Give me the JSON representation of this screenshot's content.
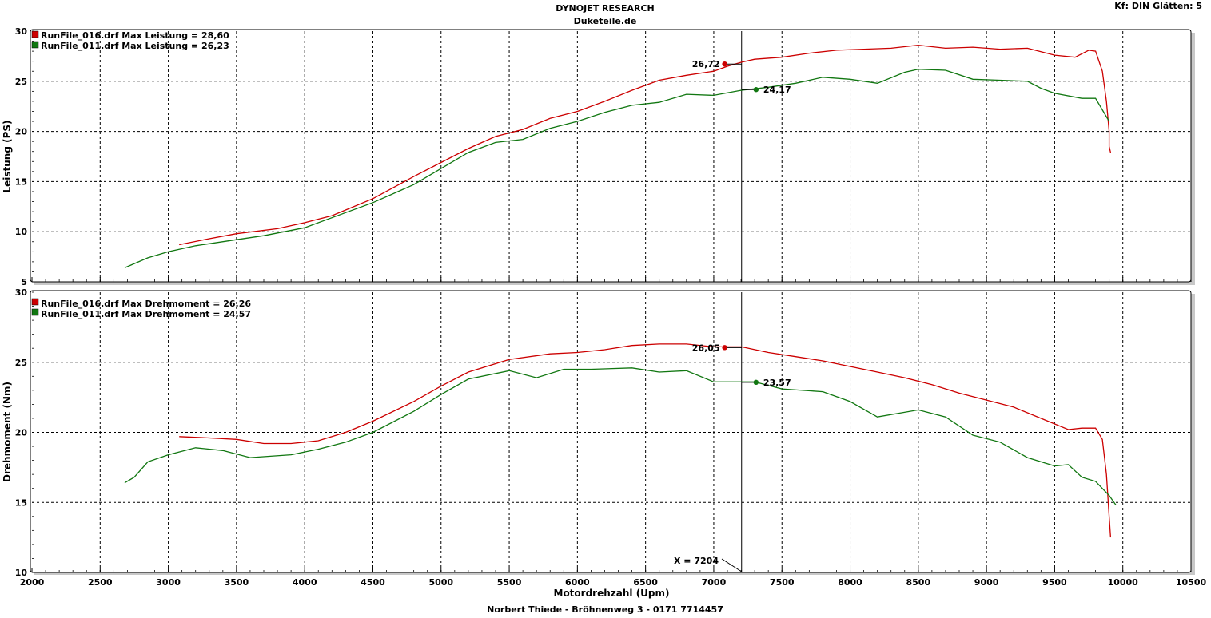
{
  "header": {
    "title": "DYNOJET RESEARCH",
    "subtitle": "Duketeile.de",
    "settings": "Kf: DIN  Glätten: 5"
  },
  "footer": {
    "text": "Norbert Thiede - Bröhnenweg 3 - 0171 7714457"
  },
  "colors": {
    "series_red": "#cc0000",
    "series_green": "#117711",
    "grid": "#000000",
    "panel_shadow": "#c0c0c0"
  },
  "cursor": {
    "rpm": 7204,
    "label": "X = 7204"
  },
  "chart_data": [
    {
      "type": "line",
      "ylabel": "Leistung (PS)",
      "xlabel": "Motordrehzahl (Upm)",
      "xlim": [
        2000,
        10500
      ],
      "ylim": [
        5,
        30
      ],
      "xticks": [
        "2000",
        "2500",
        "3000",
        "3500",
        "4000",
        "4500",
        "5000",
        "5500",
        "6000",
        "6500",
        "7000",
        "7500",
        "8000",
        "8500",
        "9000",
        "9500",
        "10000",
        "10500"
      ],
      "yticks": [
        "5",
        "10",
        "15",
        "20",
        "25",
        "30"
      ],
      "grid": true,
      "legend_position": "top-left",
      "series": [
        {
          "name": "RunFile_016.drf",
          "legend": "RunFile_016.drf Max Leistung = 28,60",
          "color": "#cc0000",
          "marker": {
            "x": 7080,
            "y": 26.72,
            "label": "26,72"
          },
          "x": [
            3080,
            3300,
            3500,
            3800,
            4000,
            4200,
            4500,
            4800,
            5000,
            5200,
            5400,
            5600,
            5800,
            6000,
            6200,
            6400,
            6600,
            6800,
            7000,
            7100,
            7204,
            7300,
            7500,
            7700,
            7900,
            8100,
            8300,
            8500,
            8700,
            8900,
            9100,
            9300,
            9500,
            9650,
            9750,
            9800,
            9850,
            9880,
            9900,
            9900,
            9910
          ],
          "values": [
            8.7,
            9.3,
            9.8,
            10.3,
            10.9,
            11.6,
            13.3,
            15.5,
            16.9,
            18.3,
            19.5,
            20.2,
            21.3,
            22.0,
            23.0,
            24.1,
            25.1,
            25.6,
            26.0,
            26.5,
            26.9,
            27.2,
            27.4,
            27.8,
            28.1,
            28.2,
            28.3,
            28.6,
            28.3,
            28.4,
            28.2,
            28.3,
            27.6,
            27.4,
            28.1,
            28.0,
            26.0,
            23.0,
            20.0,
            18.5,
            17.9
          ]
        },
        {
          "name": "RunFile_011.drf",
          "legend": "RunFile_011.drf Max Leistung = 26,23",
          "color": "#117711",
          "marker": {
            "x": 7310,
            "y": 24.17,
            "label": "24,17"
          },
          "x": [
            2680,
            2850,
            3000,
            3200,
            3500,
            3700,
            4000,
            4300,
            4500,
            4800,
            5000,
            5200,
            5400,
            5600,
            5800,
            6000,
            6200,
            6400,
            6600,
            6800,
            7000,
            7200,
            7400,
            7600,
            7800,
            8000,
            8200,
            8400,
            8500,
            8700,
            8900,
            9100,
            9300,
            9400,
            9500,
            9700,
            9800,
            9900
          ],
          "values": [
            6.4,
            7.4,
            8.0,
            8.6,
            9.2,
            9.6,
            10.4,
            11.9,
            12.9,
            14.7,
            16.3,
            17.9,
            18.9,
            19.2,
            20.3,
            21.0,
            21.9,
            22.6,
            22.9,
            23.7,
            23.6,
            24.1,
            24.4,
            24.8,
            25.4,
            25.2,
            24.8,
            25.9,
            26.2,
            26.1,
            25.2,
            25.1,
            25.0,
            24.3,
            23.8,
            23.3,
            23.3,
            21.0
          ]
        }
      ]
    },
    {
      "type": "line",
      "ylabel": "Drehmoment (Nm)",
      "xlabel": "Motordrehzahl (Upm)",
      "xlim": [
        2000,
        10500
      ],
      "ylim": [
        10,
        30
      ],
      "xticks": [
        "2000",
        "2500",
        "3000",
        "3500",
        "4000",
        "4500",
        "5000",
        "5500",
        "6000",
        "6500",
        "7000",
        "7500",
        "8000",
        "8500",
        "9000",
        "9500",
        "10000",
        "10500"
      ],
      "yticks": [
        "10",
        "15",
        "20",
        "25",
        "30"
      ],
      "grid": true,
      "legend_position": "top-left",
      "series": [
        {
          "name": "RunFile_016.drf",
          "legend": "RunFile_016.drf Max Drehmoment = 26,26",
          "color": "#cc0000",
          "marker": {
            "x": 7080,
            "y": 26.05,
            "label": "26,05"
          },
          "x": [
            3080,
            3300,
            3500,
            3700,
            3900,
            4100,
            4300,
            4500,
            4800,
            5000,
            5200,
            5500,
            5800,
            6000,
            6200,
            6400,
            6600,
            6800,
            7000,
            7204,
            7400,
            7600,
            7800,
            8000,
            8200,
            8400,
            8600,
            8800,
            9000,
            9200,
            9400,
            9600,
            9700,
            9800,
            9850,
            9880,
            9900,
            9910
          ],
          "values": [
            19.7,
            19.6,
            19.5,
            19.2,
            19.2,
            19.4,
            20.0,
            20.8,
            22.2,
            23.3,
            24.3,
            25.2,
            25.6,
            25.7,
            25.9,
            26.2,
            26.3,
            26.3,
            26.1,
            26.1,
            25.7,
            25.4,
            25.1,
            24.7,
            24.3,
            23.9,
            23.4,
            22.8,
            22.3,
            21.8,
            21.0,
            20.2,
            20.3,
            20.3,
            19.5,
            17.0,
            14.0,
            12.5
          ]
        },
        {
          "name": "RunFile_011.drf",
          "legend": "RunFile_011.drf Max Drehmoment = 24,57",
          "color": "#117711",
          "marker": {
            "x": 7310,
            "y": 23.57,
            "label": "23,57"
          },
          "x": [
            2680,
            2750,
            2850,
            3000,
            3200,
            3400,
            3600,
            3900,
            4100,
            4300,
            4500,
            4800,
            5000,
            5200,
            5500,
            5700,
            5900,
            6100,
            6400,
            6600,
            6800,
            7000,
            7300,
            7500,
            7800,
            8000,
            8200,
            8500,
            8700,
            8900,
            9100,
            9300,
            9500,
            9600,
            9700,
            9800,
            9900,
            9950
          ],
          "values": [
            16.4,
            16.8,
            17.9,
            18.4,
            18.9,
            18.7,
            18.2,
            18.4,
            18.8,
            19.3,
            20.0,
            21.5,
            22.7,
            23.8,
            24.4,
            23.9,
            24.5,
            24.5,
            24.6,
            24.3,
            24.4,
            23.6,
            23.6,
            23.1,
            22.9,
            22.2,
            21.1,
            21.6,
            21.1,
            19.8,
            19.3,
            18.2,
            17.6,
            17.7,
            16.8,
            16.5,
            15.5,
            14.8
          ]
        }
      ]
    }
  ]
}
